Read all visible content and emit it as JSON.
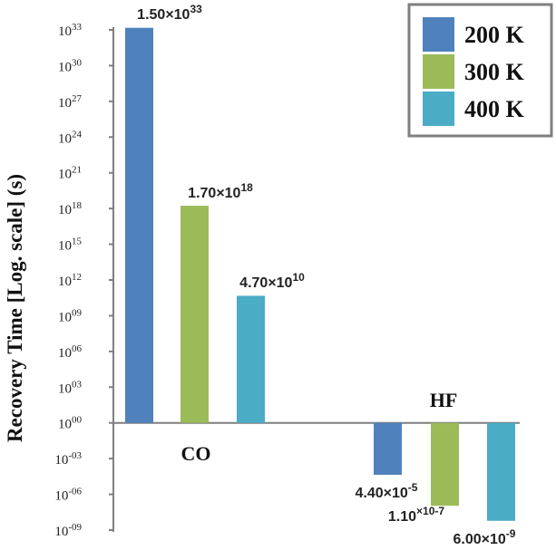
{
  "chart_data": {
    "type": "bar",
    "scale": "log10",
    "ylabel": "Recovery Time [Log. scale] (s)",
    "ylim_exponent": [
      -9,
      33
    ],
    "y_tick_exponents": [
      -9,
      -6,
      -3,
      0,
      3,
      6,
      9,
      12,
      15,
      18,
      21,
      24,
      27,
      30,
      33
    ],
    "y_tick_labels": [
      "10-09",
      "10-06",
      "10-03",
      "1000",
      "1003",
      "1006",
      "1009",
      "1012",
      "1015",
      "1018",
      "1021",
      "1024",
      "1027",
      "1030",
      "1033"
    ],
    "categories": [
      "CO",
      "HF"
    ],
    "series": [
      {
        "name": "200 K",
        "color": "#4f81bd",
        "values": [
          1.5e+33,
          4.4e-05
        ],
        "labels": [
          "1.50×1033",
          "4.40×10-5"
        ]
      },
      {
        "name": "300 K",
        "color": "#9bbb59",
        "values": [
          1.7e+18,
          1.1e-07
        ],
        "labels": [
          "1.70×1018",
          "1.10×10-7"
        ]
      },
      {
        "name": "400 K",
        "color": "#4bacc6",
        "values": [
          47000000000.0,
          6e-09
        ],
        "labels": [
          "4.70×1010",
          "6.00×10-9"
        ]
      }
    ],
    "legend": {
      "position": "top-right"
    },
    "grid": false
  }
}
